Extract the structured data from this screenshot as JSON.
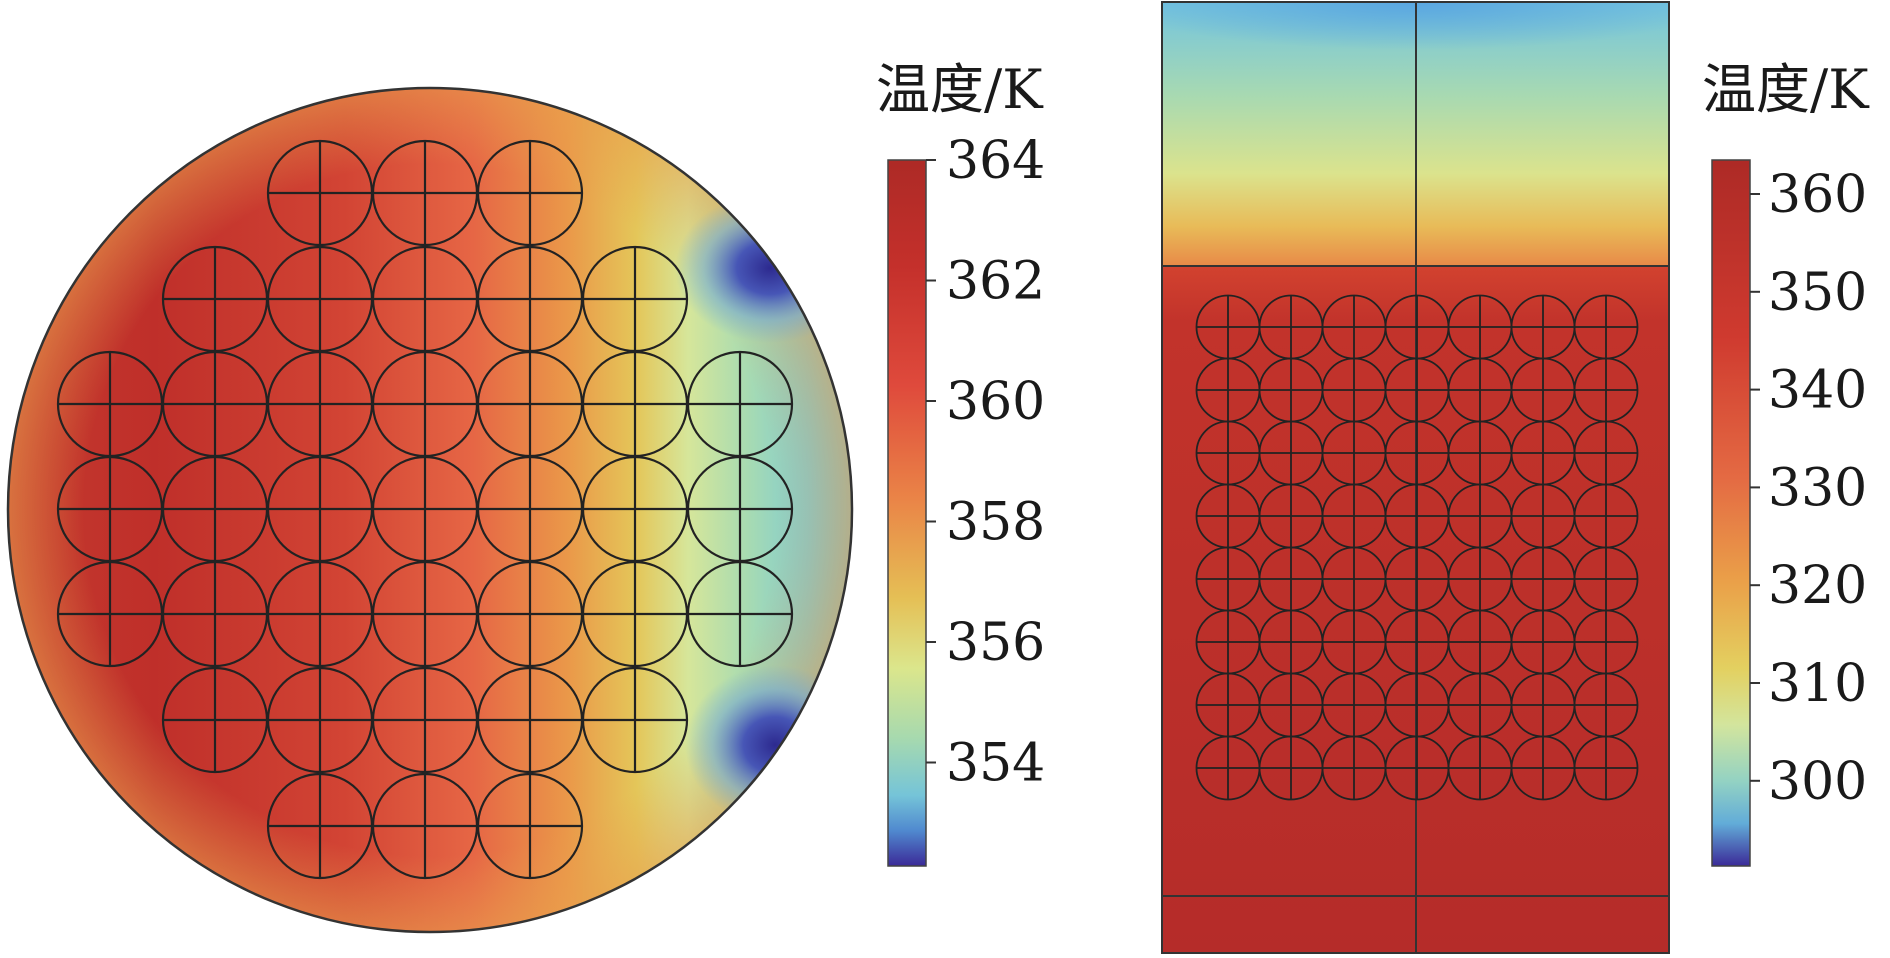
{
  "left_panel": {
    "legend": {
      "title": "温度/K",
      "ticks": [
        "364",
        "362",
        "360",
        "358",
        "356",
        "354"
      ]
    }
  },
  "right_panel": {
    "legend": {
      "title": "温度/K",
      "ticks": [
        "360",
        "350",
        "340",
        "330",
        "320",
        "310",
        "300"
      ]
    }
  },
  "colormap": {
    "stops": [
      "#ad2a26",
      "#c9302c",
      "#e45441",
      "#e98245",
      "#e5b952",
      "#dde688",
      "#a9d9a9",
      "#7fcbd6",
      "#63acd8",
      "#4d5fbc",
      "#3b2a98"
    ]
  }
}
